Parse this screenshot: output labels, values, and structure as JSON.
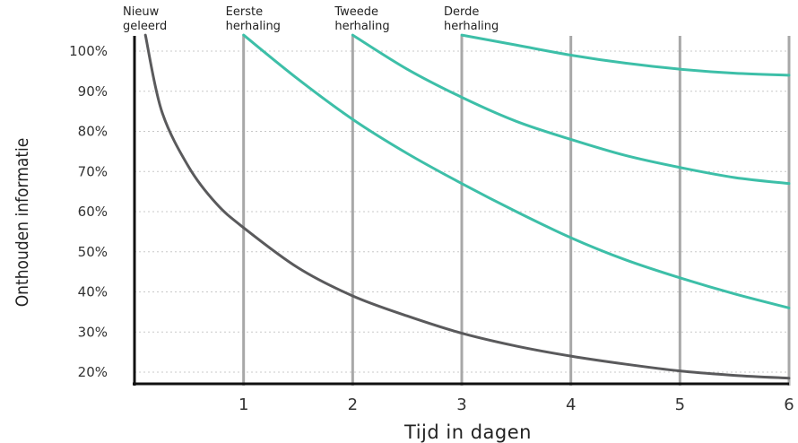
{
  "chart_data": {
    "type": "line",
    "xlabel": "Tijd in dagen",
    "ylabel": "Onthouden informatie",
    "xlim": [
      0,
      6
    ],
    "ylim": [
      20,
      100
    ],
    "y_ticks": [
      "20%",
      "30%",
      "40%",
      "50%",
      "60%",
      "70%",
      "80%",
      "90%",
      "100%"
    ],
    "y_tick_values": [
      20,
      30,
      40,
      50,
      60,
      70,
      80,
      90,
      100
    ],
    "x_ticks": [
      "1",
      "2",
      "3",
      "4",
      "5",
      "6"
    ],
    "x_tick_values": [
      1,
      2,
      3,
      4,
      5,
      6
    ],
    "grid": "horizontal dotted, vertical solid at each day",
    "events": [
      {
        "label": [
          "Nieuw",
          "geleerd"
        ],
        "x": 0
      },
      {
        "label": [
          "Eerste",
          "herhaling"
        ],
        "x": 1
      },
      {
        "label": [
          "Tweede",
          "herhaling"
        ],
        "x": 2
      },
      {
        "label": [
          "Derde",
          "herhaling"
        ],
        "x": 3
      }
    ],
    "series": [
      {
        "color": "#5a5a5c",
        "x": [
          0.1,
          0.25,
          0.5,
          0.75,
          1,
          1.5,
          2,
          2.5,
          3,
          3.5,
          4,
          4.5,
          5,
          5.5,
          6
        ],
        "y": [
          104,
          85,
          71,
          62,
          56,
          46,
          39,
          34,
          29.7,
          26.5,
          24,
          22,
          20.3,
          19.2,
          18.5
        ]
      },
      {
        "color": "#3dbfa8",
        "x": [
          1,
          1.5,
          2,
          2.5,
          3,
          3.5,
          4,
          4.5,
          5,
          5.5,
          6
        ],
        "y": [
          104,
          93,
          83,
          74.5,
          67,
          60,
          53.5,
          48,
          43.5,
          39.5,
          36
        ]
      },
      {
        "color": "#3dbfa8",
        "x": [
          2,
          2.5,
          3,
          3.5,
          4,
          4.5,
          5,
          5.5,
          6
        ],
        "y": [
          104,
          95.5,
          88.5,
          82.5,
          78,
          74,
          71,
          68.5,
          67
        ]
      },
      {
        "color": "#3dbfa8",
        "x": [
          3,
          3.5,
          4,
          4.5,
          5,
          5.5,
          6
        ],
        "y": [
          104,
          101.5,
          99,
          97,
          95.5,
          94.5,
          94
        ]
      }
    ]
  }
}
